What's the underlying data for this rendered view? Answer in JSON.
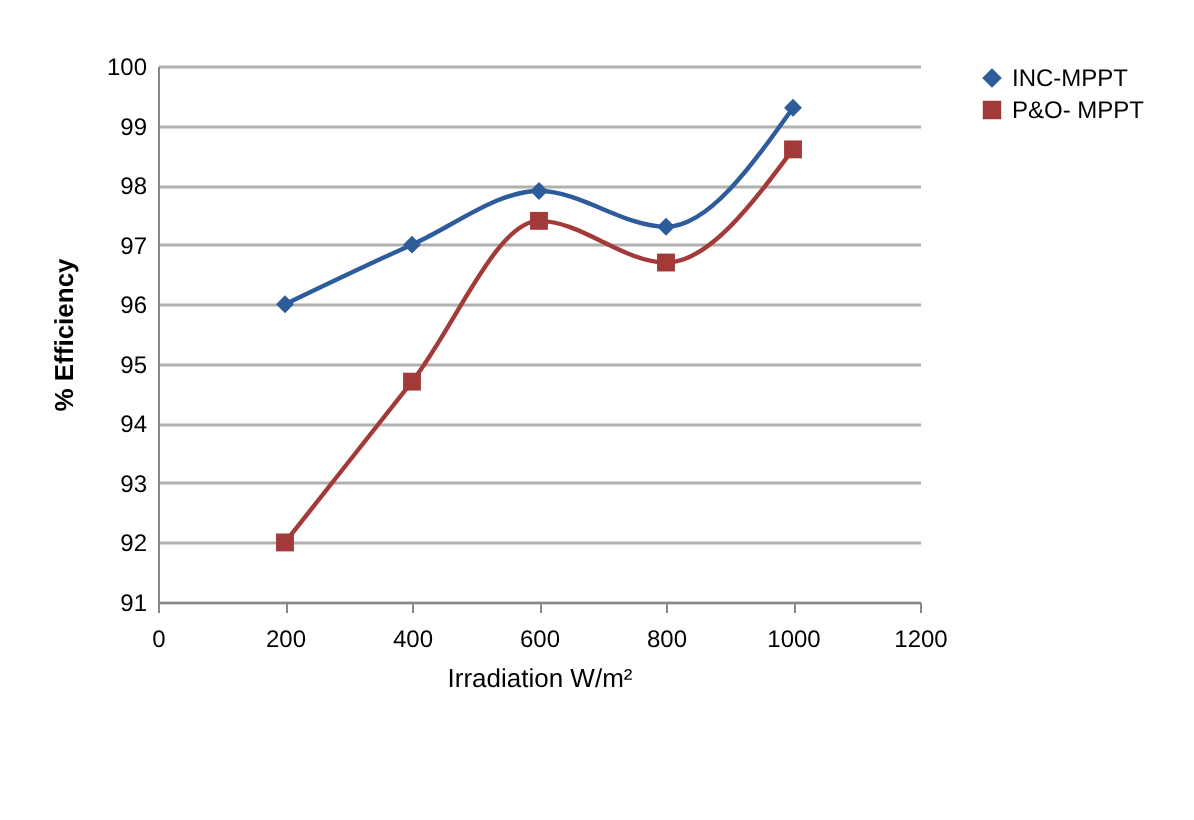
{
  "chart_data": {
    "type": "line",
    "xlabel": "Irradiation W/m²",
    "ylabel": "% Efficiency",
    "x": [
      200,
      400,
      600,
      800,
      1000
    ],
    "series": [
      {
        "name": "INC-MPPT",
        "color": "#2e5c9a",
        "marker": "diamond",
        "values": [
          96,
          97,
          97.9,
          97.3,
          99.3
        ]
      },
      {
        "name": "P&O- MPPT",
        "color": "#a33a3a",
        "marker": "square",
        "values": [
          92,
          94.7,
          97.4,
          96.7,
          98.6
        ]
      }
    ],
    "xlim": [
      0,
      1200
    ],
    "xticks": [
      0,
      200,
      400,
      600,
      800,
      1000,
      1200
    ],
    "ylim": [
      91,
      100
    ],
    "yticks": [
      91,
      92,
      93,
      94,
      95,
      96,
      97,
      98,
      99,
      100
    ],
    "grid": "y",
    "legend": "right",
    "line_style": "solid"
  }
}
